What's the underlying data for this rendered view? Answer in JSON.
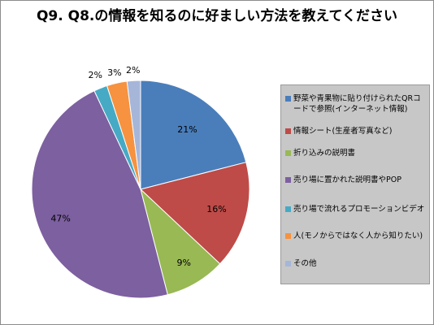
{
  "chart_data": {
    "type": "pie",
    "title": "Q9. Q8.の情報を知るのに好ましい方法を教えてください",
    "slices": [
      {
        "label": "野菜や青果物に貼り付けられたQRコードで参照(インターネット情報)",
        "value": 21,
        "display": "21%",
        "color": "#4a7ebb"
      },
      {
        "label": "情報シート(生産者写真など)",
        "value": 16,
        "display": "16%",
        "color": "#be4b48"
      },
      {
        "label": "折り込みの説明書",
        "value": 9,
        "display": "9%",
        "color": "#98b954"
      },
      {
        "label": "売り場に置かれた説明書やPOP",
        "value": 47,
        "display": "47%",
        "color": "#7d60a0"
      },
      {
        "label": "売り場で流れるプロモーションビデオ",
        "value": 2,
        "display": "2%",
        "color": "#46aac5"
      },
      {
        "label": "人(モノからではなく人から知りたい)",
        "value": 3,
        "display": "3%",
        "color": "#f69240"
      },
      {
        "label": "その他",
        "value": 2,
        "display": "2%",
        "color": "#a5b6d9"
      }
    ],
    "legend_position": "right"
  }
}
